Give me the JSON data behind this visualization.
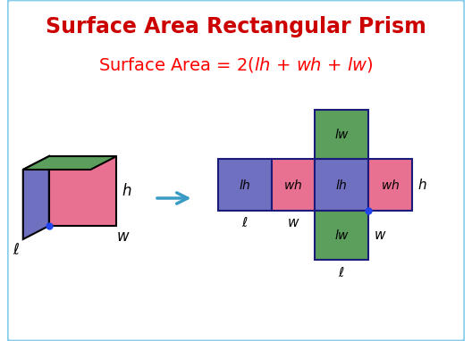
{
  "title": "Surface Area Rectangular Prism",
  "title_color": "#CC0000",
  "formula_color": "#FF0000",
  "bg_color": "#FFFFFF",
  "border_color": "#87CEEB",
  "cube_top_color": "#5C9E5C",
  "cube_left_color": "#7070C0",
  "cube_front_color": "#E87090",
  "net_blue_color": "#7070C0",
  "net_pink_color": "#E87090",
  "net_green_color": "#5C9E5C",
  "net_border_color": "#1A1A7A",
  "arrow_color": "#3A9BC4",
  "dot_color": "#2244EE"
}
